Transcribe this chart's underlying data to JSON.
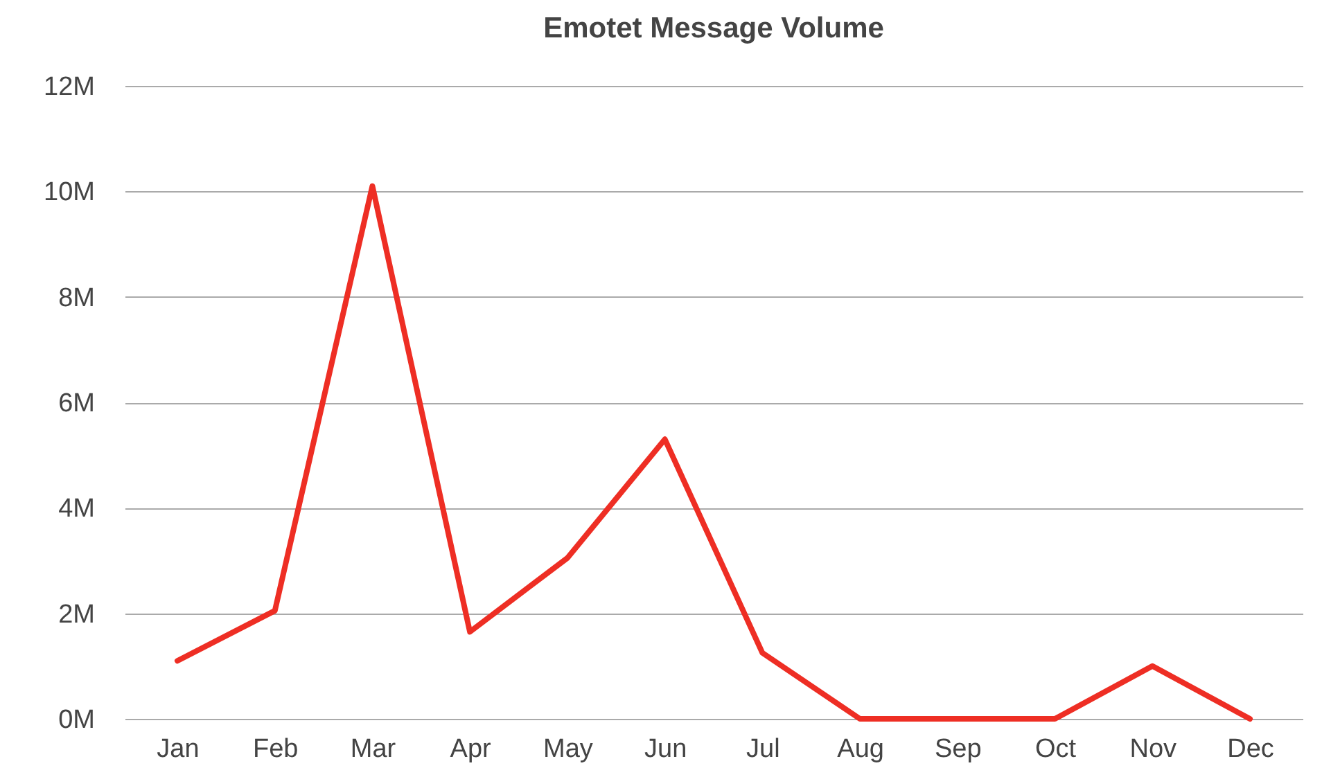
{
  "chart_data": {
    "type": "line",
    "title": "Emotet Message Volume",
    "categories": [
      "Jan",
      "Feb",
      "Mar",
      "Apr",
      "May",
      "Jun",
      "Jul",
      "Aug",
      "Sep",
      "Oct",
      "Nov",
      "Dec"
    ],
    "series": [
      {
        "color": "#ee2e24",
        "values": [
          1.1,
          2.05,
          10.1,
          1.65,
          3.05,
          5.3,
          1.25,
          0,
          0,
          0,
          1.0,
          0
        ]
      }
    ],
    "ylim": [
      0,
      12
    ],
    "yticks": [
      {
        "value": 0,
        "label": "0M"
      },
      {
        "value": 2,
        "label": "2M"
      },
      {
        "value": 4,
        "label": "4M"
      },
      {
        "value": 6,
        "label": "6M"
      },
      {
        "value": 8,
        "label": "8M"
      },
      {
        "value": 10,
        "label": "10M"
      },
      {
        "value": 12,
        "label": "12M"
      }
    ],
    "grid": "y",
    "marker": "none",
    "line_style": "solid"
  }
}
